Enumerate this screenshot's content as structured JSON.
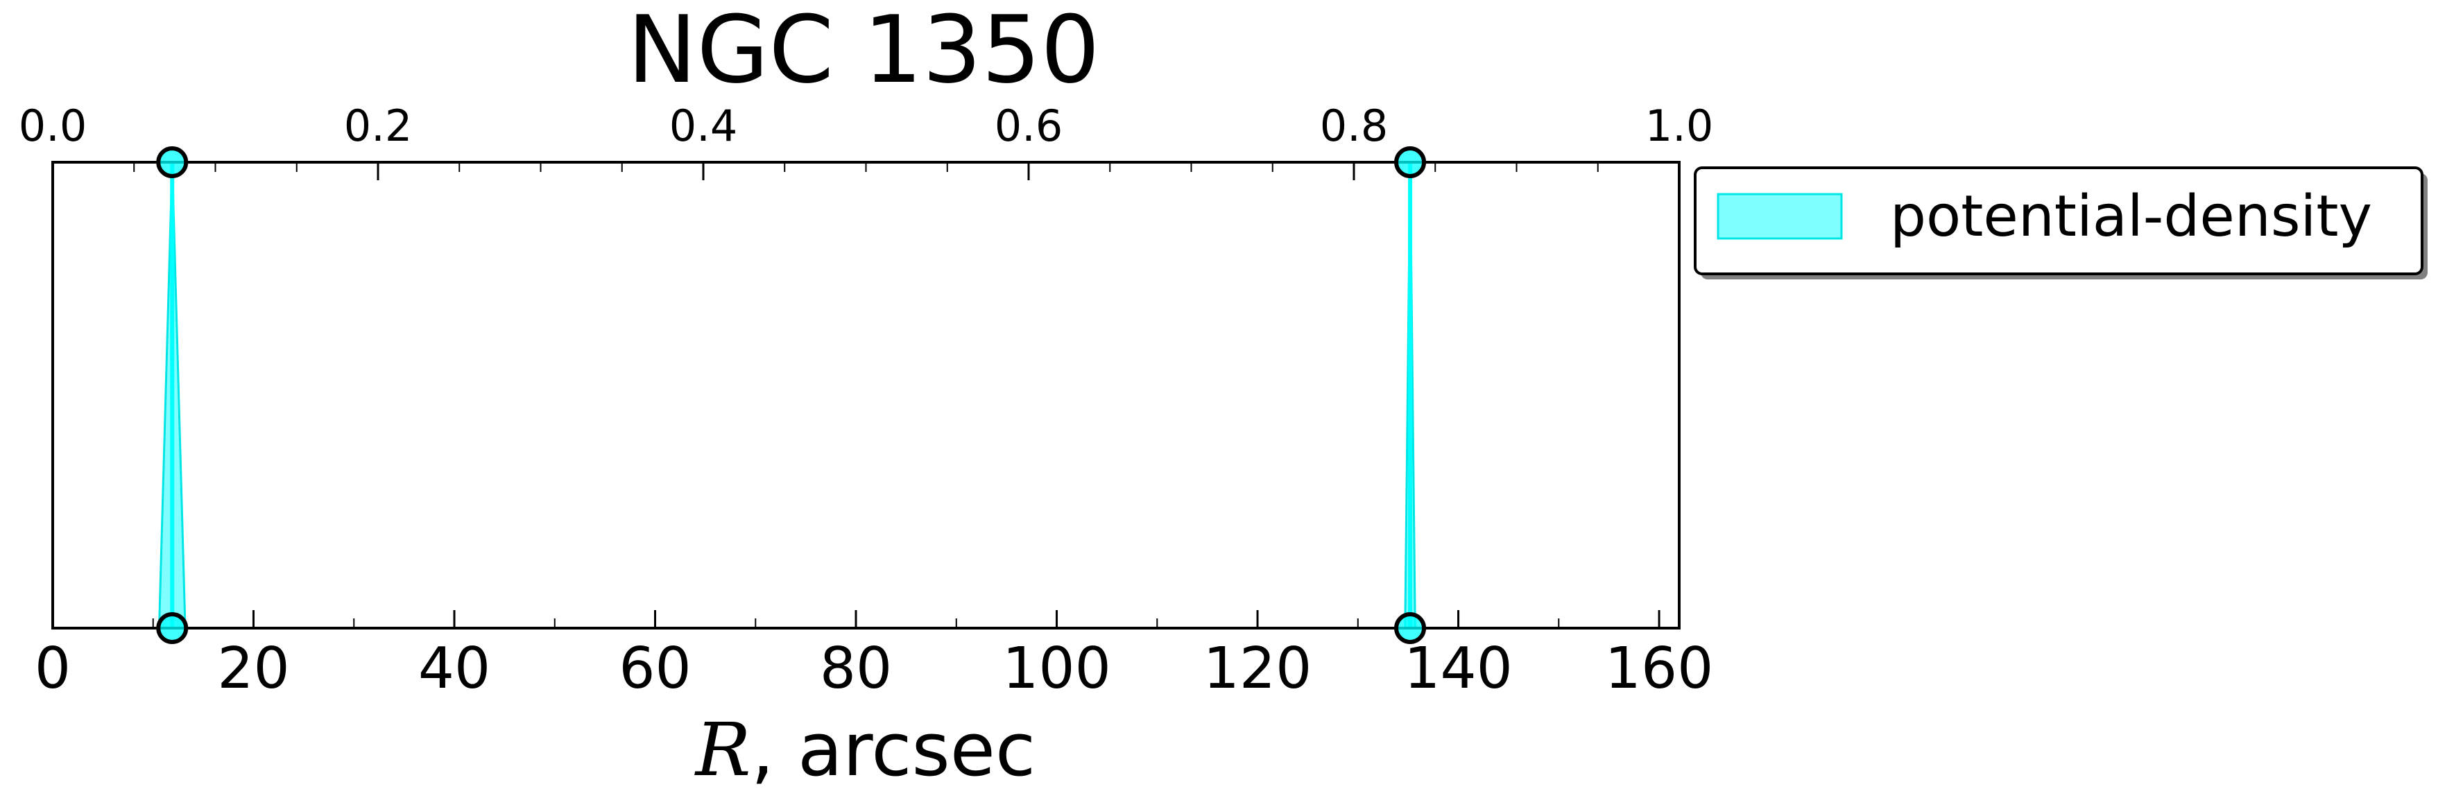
{
  "chart_data": {
    "type": "area",
    "title": "NGC 1350",
    "xlabel_symbol": "R",
    "xlabel_rest": ", arcsec",
    "xlim": [
      0,
      162
    ],
    "ylim": [
      0,
      1
    ],
    "x_ticks": [
      "0",
      "20",
      "40",
      "60",
      "80",
      "100",
      "120",
      "140",
      "160"
    ],
    "x_tick_values": [
      0,
      20,
      40,
      60,
      80,
      100,
      120,
      140,
      160
    ],
    "x2_ticks": [
      "0.0",
      "0.2",
      "0.4",
      "0.6",
      "0.8",
      "1.0"
    ],
    "x2_tick_values": [
      0.0,
      0.2,
      0.4,
      0.6,
      0.8,
      1.0
    ],
    "grid": false,
    "legend_position": "outside-right-top",
    "series": [
      {
        "name": "potential-density",
        "color": "#00ffff",
        "edge_color": "#00e5e5",
        "bands": [
          {
            "center": 11.9,
            "low": 10.6,
            "high": 13.2
          },
          {
            "center": 135.2,
            "low": 134.7,
            "high": 135.7
          }
        ],
        "points": [
          {
            "x": 11.9,
            "y": 1
          },
          {
            "x": 11.9,
            "y": 0
          },
          {
            "x": 135.2,
            "y": 1
          },
          {
            "x": 135.2,
            "y": 0
          }
        ]
      }
    ]
  }
}
